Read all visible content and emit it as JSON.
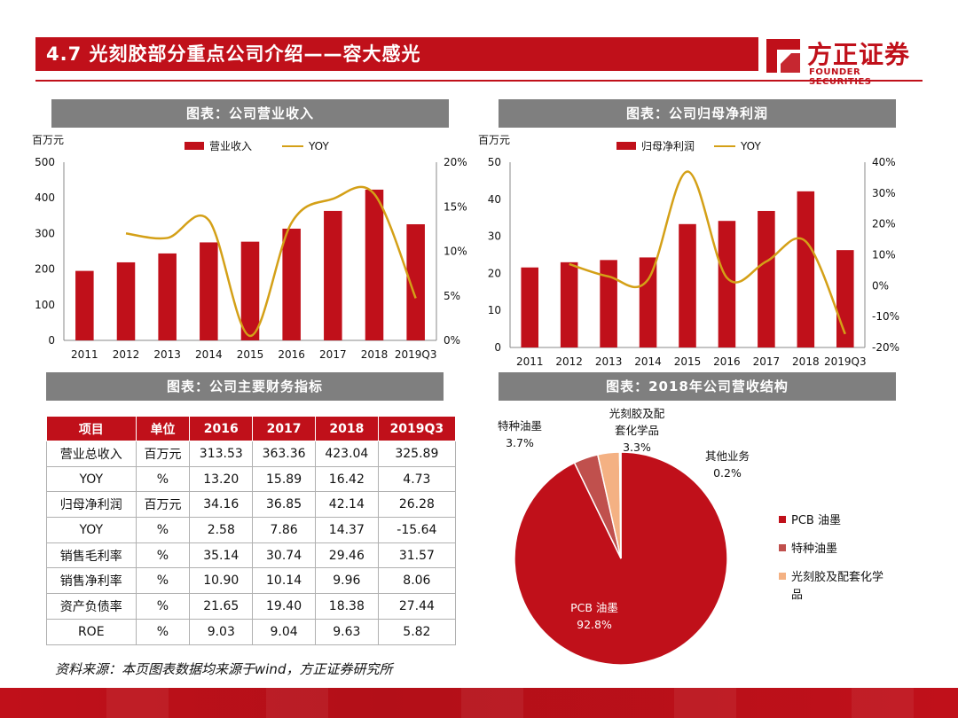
{
  "header": {
    "title": "4.7 光刻胶部分重点公司介绍——容大感光"
  },
  "logo": {
    "cn": "方正证券",
    "en": "FOUNDER SECURITIES"
  },
  "sections": {
    "revenue": "图表：公司营业收入",
    "profit": "图表：公司归母净利润",
    "financials": "图表：公司主要财务指标",
    "structure": "图表：2018年公司营收结构"
  },
  "chart_data": [
    {
      "type": "bar",
      "title": "图表：公司营业收入",
      "ylabel": "百万元",
      "categories": [
        "2011",
        "2012",
        "2013",
        "2014",
        "2015",
        "2016",
        "2017",
        "2018",
        "2019Q3"
      ],
      "series": [
        {
          "name": "营业收入",
          "kind": "bar",
          "axis": "left",
          "values": [
            195,
            219,
            244,
            275,
            277,
            313.53,
            363.36,
            423.04,
            325.89
          ]
        },
        {
          "name": "YOY",
          "kind": "line",
          "axis": "right",
          "values": [
            null,
            12.0,
            11.5,
            13.5,
            0.5,
            13.2,
            15.89,
            16.42,
            4.73
          ]
        }
      ],
      "ylim": [
        0,
        500
      ],
      "yticks": [
        "0",
        "100",
        "200",
        "300",
        "400",
        "500"
      ],
      "y2lim": [
        0,
        20
      ],
      "y2ticks": [
        "0%",
        "5%",
        "10%",
        "15%",
        "20%"
      ],
      "legend": "top"
    },
    {
      "type": "bar",
      "title": "图表：公司归母净利润",
      "ylabel": "百万元",
      "categories": [
        "2011",
        "2012",
        "2013",
        "2014",
        "2015",
        "2016",
        "2017",
        "2018",
        "2019Q3"
      ],
      "series": [
        {
          "name": "归母净利润",
          "kind": "bar",
          "axis": "left",
          "values": [
            21.6,
            23.0,
            23.6,
            24.3,
            33.3,
            34.16,
            36.85,
            42.14,
            26.28
          ]
        },
        {
          "name": "YOY",
          "kind": "line",
          "axis": "right",
          "values": [
            null,
            7,
            3,
            2,
            37,
            2.58,
            7.86,
            14.37,
            -15.64
          ]
        }
      ],
      "ylim": [
        0,
        50
      ],
      "yticks": [
        "0",
        "10",
        "20",
        "30",
        "40",
        "50"
      ],
      "y2lim": [
        -20,
        40
      ],
      "y2ticks": [
        "-20%",
        "-10%",
        "0%",
        "10%",
        "20%",
        "30%",
        "40%"
      ],
      "legend": "top"
    },
    {
      "type": "pie",
      "title": "图表：2018年公司营收结构",
      "labels": [
        "PCB 油墨",
        "特种油墨",
        "光刻胶及配套化学品",
        "其他业务"
      ],
      "values": [
        92.8,
        3.7,
        3.3,
        0.2
      ],
      "value_labels": [
        "92.8%",
        "3.7%",
        "3.3%",
        "0.2%"
      ],
      "colors": [
        "#c0101a",
        "#c0504d",
        "#f4b183",
        "#7f7f7f"
      ],
      "slice_labels": [
        {
          "lines": [
            "PCB 油墨",
            "92.8%"
          ]
        },
        {
          "lines": [
            "特种油墨",
            "3.7%"
          ]
        },
        {
          "lines": [
            "光刻胶及配",
            "套化学品",
            "3.3%"
          ]
        },
        {
          "lines": [
            "其他业务",
            "0.2%"
          ]
        }
      ],
      "legend_items": [
        {
          "lines": [
            "PCB 油墨"
          ]
        },
        {
          "lines": [
            "特种油墨"
          ]
        },
        {
          "lines": [
            "光刻胶及配套化学",
            "品"
          ]
        }
      ],
      "legend": "right"
    }
  ],
  "table": {
    "headers": [
      "项目",
      "单位",
      "2016",
      "2017",
      "2018",
      "2019Q3"
    ],
    "rows": [
      [
        "营业总收入",
        "百万元",
        "313.53",
        "363.36",
        "423.04",
        "325.89"
      ],
      [
        "YOY",
        "%",
        "13.20",
        "15.89",
        "16.42",
        "4.73"
      ],
      [
        "归母净利润",
        "百万元",
        "34.16",
        "36.85",
        "42.14",
        "26.28"
      ],
      [
        "YOY",
        "%",
        "2.58",
        "7.86",
        "14.37",
        "-15.64"
      ],
      [
        "销售毛利率",
        "%",
        "35.14",
        "30.74",
        "29.46",
        "31.57"
      ],
      [
        "销售净利率",
        "%",
        "10.90",
        "10.14",
        "9.96",
        "8.06"
      ],
      [
        "资产负债率",
        "%",
        "21.65",
        "19.40",
        "18.38",
        "27.44"
      ],
      [
        "ROE",
        "%",
        "9.03",
        "9.04",
        "9.63",
        "5.82"
      ]
    ]
  },
  "source": "资料来源：本页图表数据均来源于wind，方正证券研究所",
  "colors": {
    "brand_red": "#c0101a",
    "line_gold": "#d4a017",
    "section_gray": "#7f7f7f"
  }
}
